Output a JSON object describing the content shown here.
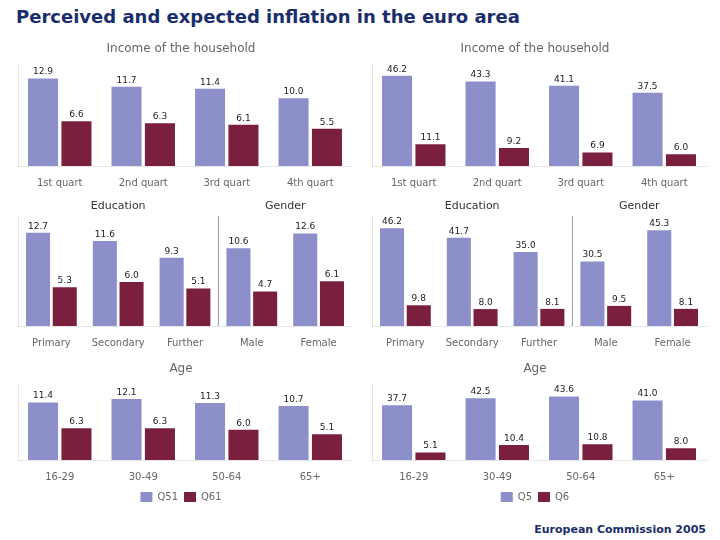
{
  "title": "Perceived and expected inflation in the euro area",
  "subtitle": "European Commission 2005",
  "chart_data": [
    {
      "type": "bar",
      "title": "Income of the household",
      "categories": [
        "1st quart",
        "2nd quart",
        "3rd quart",
        "4th quart"
      ],
      "series": [
        {
          "color": "#8c8fc9",
          "values": [
            12.9,
            11.7,
            11.4,
            10.0
          ],
          "value_labels": [
            "12.9",
            "11.7",
            "11.4",
            "10.0"
          ]
        },
        {
          "color": "#7a1f3d",
          "values": [
            6.6,
            6.3,
            6.1,
            5.5
          ],
          "value_labels": [
            "6.6",
            "6.3",
            "6.1",
            "5.5"
          ]
        }
      ],
      "ylim": [
        0,
        15
      ],
      "grid": false,
      "tick_labels": "x",
      "data_labels": true
    },
    {
      "type": "bar",
      "title": "Income of the household",
      "categories": [
        "1st quart",
        "2nd quart",
        "3rd quart",
        "4th quart"
      ],
      "series": [
        {
          "color": "#8c8fc9",
          "values": [
            46.2,
            43.3,
            41.1,
            37.5
          ],
          "value_labels": [
            "46.2",
            "43.3",
            "41.1",
            "37.5"
          ]
        },
        {
          "color": "#7a1f3d",
          "values": [
            11.1,
            9.2,
            6.9,
            6.0
          ],
          "value_labels": [
            "11.1",
            "9.2",
            "6.9",
            "6.0"
          ]
        }
      ],
      "ylim": [
        0,
        52
      ],
      "grid": false,
      "tick_labels": "x",
      "data_labels": true
    },
    {
      "type": "bar",
      "categories": [
        "Primary",
        "Secondary",
        "Further",
        "Male",
        "Female"
      ],
      "annotations": [
        {
          "text": "Education",
          "categories": [
            "Primary",
            "Secondary",
            "Further"
          ]
        },
        {
          "text": "Gender",
          "categories": [
            "Male",
            "Female"
          ]
        }
      ],
      "series": [
        {
          "color": "#8c8fc9",
          "values": [
            12.7,
            11.6,
            9.3,
            10.6,
            12.6
          ],
          "value_labels": [
            "12.7",
            "11.6",
            "9.3",
            "10.6",
            "12.6"
          ]
        },
        {
          "color": "#7a1f3d",
          "values": [
            5.3,
            6.0,
            5.1,
            4.7,
            6.1
          ],
          "value_labels": [
            "5.3",
            "6.0",
            "5.1",
            "4.7",
            "6.1"
          ]
        }
      ],
      "ylim": [
        0,
        15
      ],
      "grid": false,
      "tick_labels": "x",
      "data_labels": true
    },
    {
      "type": "bar",
      "categories": [
        "Primary",
        "Secondary",
        "Further",
        "Male",
        "Female"
      ],
      "annotations": [
        {
          "text": "Education",
          "categories": [
            "Primary",
            "Secondary",
            "Further"
          ]
        },
        {
          "text": "Gender",
          "categories": [
            "Male",
            "Female"
          ]
        }
      ],
      "series": [
        {
          "color": "#8c8fc9",
          "values": [
            46.2,
            41.7,
            35.0,
            30.5,
            45.3
          ],
          "value_labels": [
            "46.2",
            "41.7",
            "35.0",
            "30.5",
            "45.3"
          ]
        },
        {
          "color": "#7a1f3d",
          "values": [
            9.8,
            8.0,
            8.1,
            9.5,
            8.1
          ],
          "value_labels": [
            "9.8",
            "8.0",
            "8.1",
            "9.5",
            "8.1"
          ]
        }
      ],
      "ylim": [
        0,
        52
      ],
      "grid": false,
      "tick_labels": "x",
      "data_labels": true
    },
    {
      "type": "bar",
      "title": "Age",
      "categories": [
        "16-29",
        "30-49",
        "50-64",
        "65+"
      ],
      "series": [
        {
          "name": "Q51",
          "color": "#8c8fc9",
          "values": [
            11.4,
            12.1,
            11.3,
            10.7
          ],
          "value_labels": [
            "11.4",
            "12.1",
            "11.3",
            "10.7"
          ]
        },
        {
          "name": "Q61",
          "color": "#7a1f3d",
          "values": [
            6.3,
            6.3,
            6.0,
            5.1
          ],
          "value_labels": [
            "6.3",
            "6.3",
            "6.0",
            "5.1"
          ]
        }
      ],
      "ylim": [
        0,
        15
      ],
      "grid": false,
      "tick_labels": "x",
      "data_labels": true,
      "legend": "bottom"
    },
    {
      "type": "bar",
      "title": "Age",
      "categories": [
        "16-29",
        "30-49",
        "50-64",
        "65+"
      ],
      "series": [
        {
          "name": "Q5",
          "color": "#8c8fc9",
          "values": [
            37.7,
            42.5,
            43.6,
            41.0
          ],
          "value_labels": [
            "37.7",
            "42.5",
            "43.6",
            "41.0"
          ]
        },
        {
          "name": "Q6",
          "color": "#7a1f3d",
          "values": [
            5.1,
            10.4,
            10.8,
            8.0
          ],
          "value_labels": [
            "5.1",
            "10.4",
            "10.8",
            "8.0"
          ]
        }
      ],
      "ylim": [
        0,
        52
      ],
      "grid": false,
      "tick_labels": "x",
      "data_labels": true,
      "legend": "bottom"
    }
  ]
}
